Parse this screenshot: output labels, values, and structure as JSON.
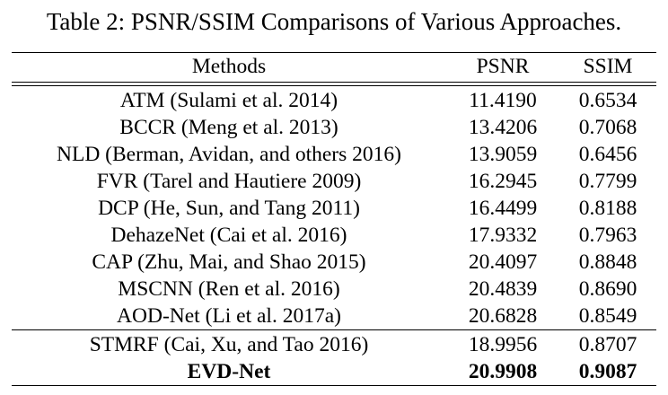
{
  "caption": "Table 2: PSNR/SSIM Comparisons of Various Approaches.",
  "headers": {
    "method": "Methods",
    "psnr": "PSNR",
    "ssim": "SSIM"
  },
  "group1": [
    {
      "method": "ATM (Sulami et al. 2014)",
      "psnr": "11.4190",
      "ssim": "0.6534"
    },
    {
      "method": "BCCR (Meng et al. 2013)",
      "psnr": "13.4206",
      "ssim": "0.7068"
    },
    {
      "method": "NLD (Berman, Avidan, and others 2016)",
      "psnr": "13.9059",
      "ssim": "0.6456"
    },
    {
      "method": "FVR (Tarel and Hautiere 2009)",
      "psnr": "16.2945",
      "ssim": "0.7799"
    },
    {
      "method": "DCP (He, Sun, and Tang 2011)",
      "psnr": "16.4499",
      "ssim": "0.8188"
    },
    {
      "method": "DehazeNet (Cai et al. 2016)",
      "psnr": "17.9332",
      "ssim": "0.7963"
    },
    {
      "method": "CAP (Zhu, Mai, and Shao 2015)",
      "psnr": "20.4097",
      "ssim": "0.8848"
    },
    {
      "method": "MSCNN (Ren et al. 2016)",
      "psnr": "20.4839",
      "ssim": "0.8690"
    },
    {
      "method": "AOD-Net (Li et al. 2017a)",
      "psnr": "20.6828",
      "ssim": "0.8549"
    }
  ],
  "group2": [
    {
      "method": "STMRF (Cai, Xu, and Tao 2016)",
      "psnr": "18.9956",
      "ssim": "0.8707"
    },
    {
      "method": "EVD-Net",
      "psnr": "20.9908",
      "ssim": "0.9087"
    }
  ]
}
